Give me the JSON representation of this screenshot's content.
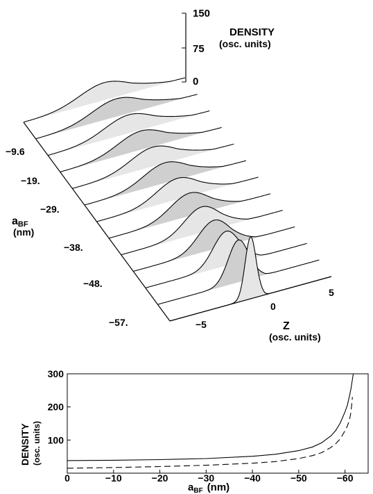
{
  "chart_data": [
    {
      "type": "area",
      "axes": {
        "density": {
          "label": "DENSITY",
          "unit": "(osc. units)",
          "ticks": [
            "150",
            "75",
            "0"
          ],
          "range": [
            0,
            150
          ]
        },
        "z": {
          "label": "Z",
          "unit": "(osc. units)",
          "ticks": [
            "−5",
            "0",
            "5"
          ]
        },
        "a": {
          "label_main": "a",
          "label_sub": "BF",
          "unit": "(nm)",
          "ticks": [
            "−9.6",
            "−19.",
            "−29.",
            "−38.",
            "−48.",
            "−57."
          ]
        }
      },
      "slices": [
        {
          "a_bf": 0.0,
          "peak": 38,
          "width": 3.4
        },
        {
          "a_bf": -4.8,
          "peak": 39,
          "width": 3.35
        },
        {
          "a_bf": -9.6,
          "peak": 40,
          "width": 3.3
        },
        {
          "a_bf": -14.4,
          "peak": 41,
          "width": 3.2
        },
        {
          "a_bf": -19.2,
          "peak": 42,
          "width": 3.1
        },
        {
          "a_bf": -24.0,
          "peak": 44,
          "width": 3.0
        },
        {
          "a_bf": -28.8,
          "peak": 46,
          "width": 2.85
        },
        {
          "a_bf": -33.6,
          "peak": 50,
          "width": 2.65
        },
        {
          "a_bf": -38.4,
          "peak": 56,
          "width": 2.4
        },
        {
          "a_bf": -43.2,
          "peak": 63,
          "width": 2.15
        },
        {
          "a_bf": -48.0,
          "peak": 75,
          "width": 1.8
        },
        {
          "a_bf": -52.8,
          "peak": 92,
          "width": 1.4
        },
        {
          "a_bf": -57.6,
          "peak": 135,
          "width": 0.75
        }
      ]
    },
    {
      "type": "line",
      "xlabel_main": "a",
      "xlabel_sub": "BF",
      "xlabel_unit": "(nm)",
      "ylabel": "DENSITY",
      "ylabel_unit": "(osc. units)",
      "xlim": [
        0,
        -65
      ],
      "ylim": [
        0,
        300
      ],
      "xticks": [
        "0",
        "−10",
        "−20",
        "−30",
        "−40",
        "−50",
        "−60"
      ],
      "yticks": [
        "100",
        "200",
        "300"
      ],
      "series": [
        {
          "style": "solid",
          "x": [
            0,
            -10,
            -20,
            -30,
            -40,
            -45,
            -50,
            -53,
            -55,
            -57,
            -58,
            -59,
            -60,
            -60.5,
            -61,
            -61.3,
            -61.6,
            -61.8
          ],
          "y": [
            38,
            39,
            41,
            44,
            51,
            57,
            68,
            79,
            92,
            113,
            129,
            152,
            185,
            205,
            235,
            256,
            283,
            300
          ]
        },
        {
          "style": "dashed",
          "x": [
            0,
            -10,
            -20,
            -30,
            -40,
            -45,
            -50,
            -53,
            -55,
            -57,
            -58,
            -59,
            -60,
            -60.5,
            -61,
            -61.3,
            -61.6
          ],
          "y": [
            15,
            17,
            20,
            24,
            30,
            35,
            44,
            53,
            62,
            78,
            89,
            104,
            128,
            142,
            163,
            185,
            230
          ]
        }
      ]
    }
  ]
}
